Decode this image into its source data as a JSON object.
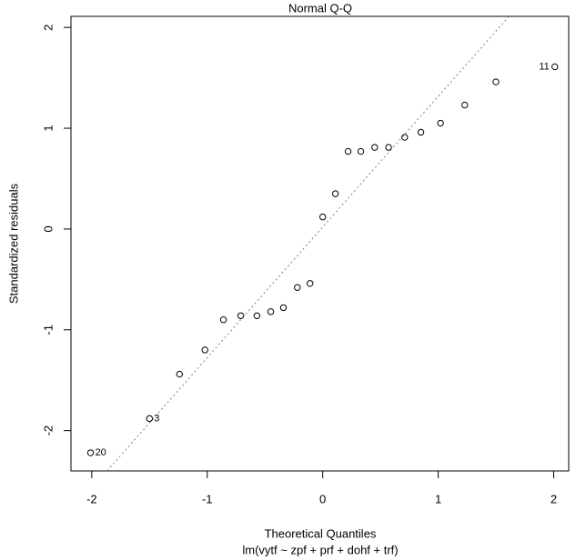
{
  "chart_data": {
    "type": "scatter",
    "title": "Normal Q-Q",
    "x_label": "Theoretical Quantiles",
    "subtitle": "lm(vytf ~ zpf + prf + dohf + trf)",
    "y_label": "Standardized residuals",
    "x": [
      -2.01,
      -1.5,
      -1.24,
      -1.02,
      -0.86,
      -0.71,
      -0.57,
      -0.45,
      -0.34,
      -0.22,
      -0.11,
      0,
      0.11,
      0.22,
      0.33,
      0.45,
      0.57,
      0.71,
      0.85,
      1.02,
      1.23,
      1.5,
      2.01
    ],
    "values": [
      -2.22,
      -1.88,
      -1.44,
      -1.2,
      -0.9,
      -0.86,
      -0.86,
      -0.82,
      -0.78,
      -0.58,
      -0.54,
      0.12,
      0.35,
      0.77,
      0.77,
      0.81,
      0.81,
      0.91,
      0.96,
      1.05,
      1.23,
      1.46,
      1.61
    ],
    "point_labels": [
      "20",
      "3",
      null,
      null,
      null,
      null,
      null,
      null,
      null,
      null,
      null,
      null,
      null,
      null,
      null,
      null,
      null,
      null,
      null,
      null,
      null,
      null,
      "11"
    ],
    "reference_line": {
      "intercept": 0.02,
      "slope": 1.296
    },
    "xlim": [
      -2.18,
      2.13
    ],
    "ylim": [
      -2.4,
      2.11
    ],
    "xticks": [
      -2,
      -1,
      0,
      1,
      2
    ],
    "yticks": [
      -2,
      -1,
      0,
      1,
      2
    ],
    "color": "#000000",
    "line_color": "#808080"
  }
}
